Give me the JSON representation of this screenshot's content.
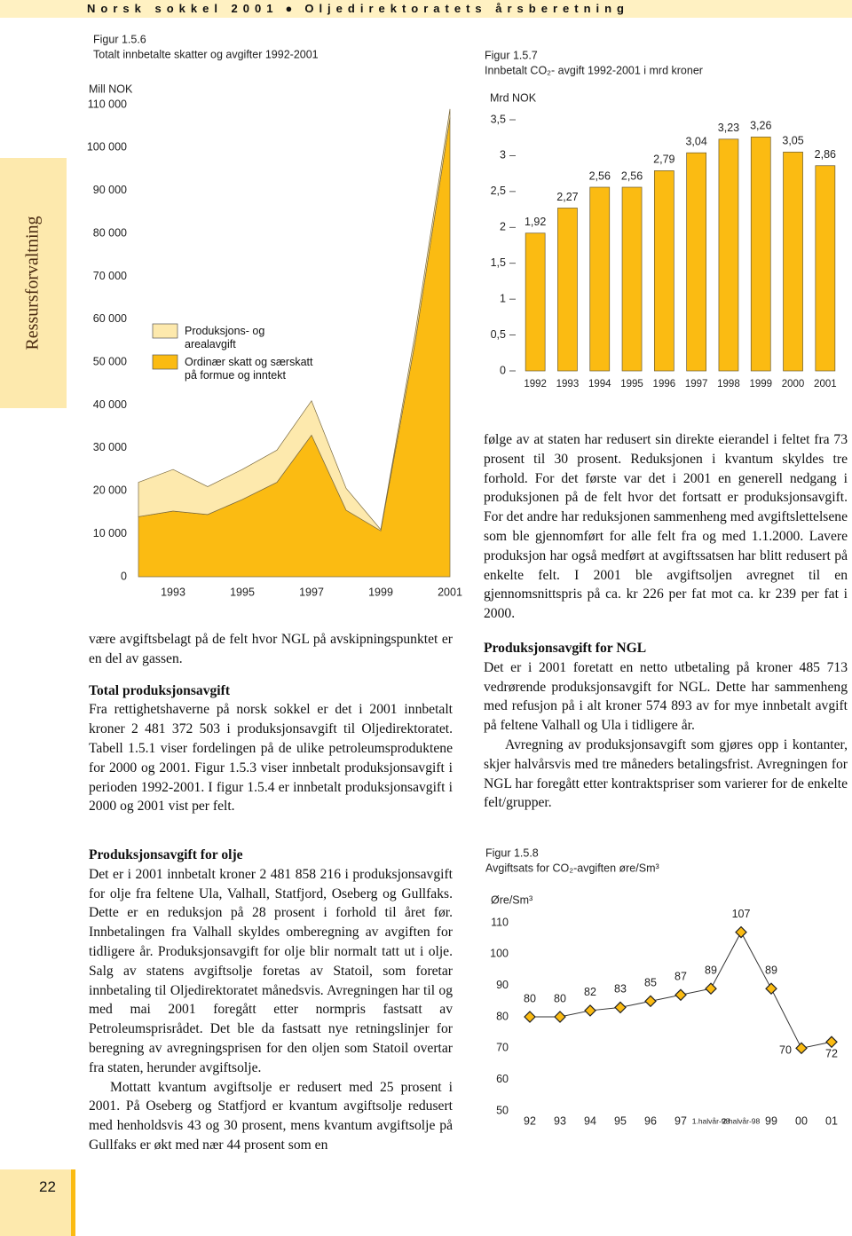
{
  "header": {
    "left": "Norsk sokkel 2001",
    "right": "Oljedirektoratets årsberetning"
  },
  "sidebar": "Ressursforvaltning",
  "page_number": "22",
  "body": [
    {
      "paragraphs": [
        "være avgiftsbelagt på de felt hvor NGL på avskipnings­punktet er en del av gassen."
      ]
    },
    {
      "heading": "Total produksjonsavgift",
      "paragraphs": [
        "Fra rettighetshaverne på norsk sokkel er det i 2001 innbetalt kroner 2 481 372 503 i produksjonsavgift til Oljedirektoratet. Tabell 1.5.1 viser fordelingen på de ulike petroleums­produktene for 2000 og 2001. Figur 1.5.3 viser innbetalt produksjonsavgift i perioden 1992-2001. I figur 1.5.4 er inn­betalt produksjonsavgift i 2000 og 2001 vist per felt."
      ]
    },
    {
      "heading": "Produksjonsavgift for olje",
      "paragraphs": [
        "Det er i 2001 innbetalt kroner 2 481 858 216 i produksjons­avgift for olje fra feltene Ula, Valhall, Statfjord, Oseberg og Gullfaks. Dette er en reduksjon på 28 prosent i forhold til året før. Innbetalingen fra Valhall skyldes omberegning av avgiften for tidligere år. Produksjonsavgift for olje blir nor­malt tatt ut i olje. Salg av statens avgiftsolje foretas av Sta­toil, som foretar innbetaling til Oljedirektoratet månedsvis. Avregningen har til og med mai 2001 foregått etter normpris fastsatt av Petroleumsprisrådet. Det ble da fastsatt nye ret­ningslinjer for beregning av avregningsprisen for den oljen som Statoil overtar fra staten, herunder avgiftsolje.",
        "Mottatt kvantum avgiftsolje er redusert med 25 prosent i 2001. På Oseberg og Statfjord er kvantum avgiftsolje redu­sert med henholdsvis 43 og 30 prosent, mens kvantum avgiftsolje på Gullfaks er økt med nær 44 prosent som en"
      ]
    },
    {
      "paragraphs": [
        "følge av at staten har redusert sin direkte eierandel i feltet fra 73 prosent til 30 prosent. Reduksjonen i kvantum skyl­des tre forhold. For det første var det i 2001 en generell nedgang i produksjonen på de felt hvor det fortsatt er produksjonsavgift. For det andre har reduksjonen sammen­heng med avgiftslettelsene som ble gjennomført for alle felt fra og med 1.1.2000. Lavere produksjon har også medført at avgiftssatsen har blitt redusert på enkelte felt. I 2001 ble avgiftsoljen avregnet til en gjennomsnittspris på ca. kr 226 per fat mot ca. kr 239 per fat i 2000."
      ]
    },
    {
      "heading": "Produksjonsavgift for NGL",
      "paragraphs": [
        "Det er i 2001 foretatt en netto utbetaling på kroner 485 713 vedrørende produksjonsavgift for NGL. Dette har sammen­heng med refusjon på i alt kroner 574 893 av for mye innbe­talt avgift på feltene Valhall og Ula i tidligere år.",
        "Avregning av produksjonsavgift som gjøres opp i kon­tanter, skjer halvårsvis med tre måneders betalingsfrist. Avregningen for NGL har foregått etter kontraktspriser som varierer for de enkelte felt/grupper."
      ]
    }
  ],
  "chart_data": [
    {
      "type": "area",
      "label": "Figur 1.5.6",
      "title": "Totalt innbetalte skatter og avgifter 1992-2001",
      "y_label": "Mill NOK",
      "x": [
        1992,
        1993,
        1994,
        1995,
        1996,
        1997,
        1998,
        1999,
        2000,
        2001
      ],
      "xlim": [
        1992,
        2001
      ],
      "xticks": [
        1993,
        1995,
        1997,
        1999,
        2001
      ],
      "ylim": [
        0,
        110000
      ],
      "yticks": [
        0,
        {
          "value": 10000,
          "label": "10 000"
        },
        {
          "value": 20000,
          "label": "20 000"
        },
        {
          "value": 30000,
          "label": "30 000"
        },
        {
          "value": 40000,
          "label": "40 000"
        },
        {
          "value": 50000,
          "label": "50 000"
        },
        {
          "value": 60000,
          "label": "60 000"
        },
        {
          "value": 70000,
          "label": "70 000"
        },
        {
          "value": 80000,
          "label": "80 000"
        },
        {
          "value": 90000,
          "label": "90 000"
        },
        {
          "value": 100000,
          "label": "100 000"
        },
        {
          "value": 110000,
          "label": "110 000"
        }
      ],
      "stacked": true,
      "series": [
        {
          "name": "Ordinær skatt og særskatt på formue og inntekt",
          "color": "#fbbb12",
          "values": [
            14000,
            15300,
            14500,
            18000,
            22000,
            33000,
            15500,
            10700,
            55000,
            107000
          ]
        },
        {
          "name": "Produksjons- og arealavgift",
          "color": "#fde9ad",
          "values": [
            8000,
            9700,
            6500,
            7000,
            7500,
            8000,
            5100,
            300,
            2000,
            2000
          ]
        }
      ]
    },
    {
      "type": "bar",
      "label": "Figur 1.5.7",
      "title": "Innbetalt CO₂- avgift 1992-2001 i mrd kroner",
      "y_label": "Mrd NOK",
      "categories": [
        "1992",
        "1993",
        "1994",
        "1995",
        "1996",
        "1997",
        "1998",
        "1999",
        "2000",
        "2001"
      ],
      "values": [
        1.92,
        2.27,
        2.56,
        2.56,
        2.79,
        3.04,
        3.23,
        3.26,
        3.05,
        2.86
      ],
      "value_labels": [
        "1,92",
        "2,27",
        "2,56",
        "2,56",
        "2,79",
        "3,04",
        "3,23",
        "3,26",
        "3,05",
        "2,86"
      ],
      "color": "#fbbb12",
      "ylim": [
        0,
        3.5
      ],
      "yticks": [
        0,
        {
          "value": 0.5,
          "label": "0,5"
        },
        1,
        {
          "value": 1.5,
          "label": "1,5"
        },
        2,
        {
          "value": 2.5,
          "label": "2,5"
        },
        3,
        {
          "value": 3.5,
          "label": "3,5"
        }
      ]
    },
    {
      "type": "line",
      "label": "Figur 1.5.8",
      "title": "Avgiftsats for CO₂-avgiften øre/Sm³",
      "y_label": "Øre/Sm³",
      "categories": [
        "92",
        "93",
        "94",
        "95",
        "96",
        "97",
        "1.halvår-98",
        "2.halvår-98",
        "99",
        "00",
        "01"
      ],
      "values": [
        80,
        80,
        82,
        83,
        85,
        87,
        89,
        107,
        89,
        70,
        72
      ],
      "color": "#fbbb12",
      "ylim": [
        50,
        110
      ],
      "yticks": [
        50,
        60,
        70,
        80,
        90,
        100,
        110
      ]
    }
  ]
}
